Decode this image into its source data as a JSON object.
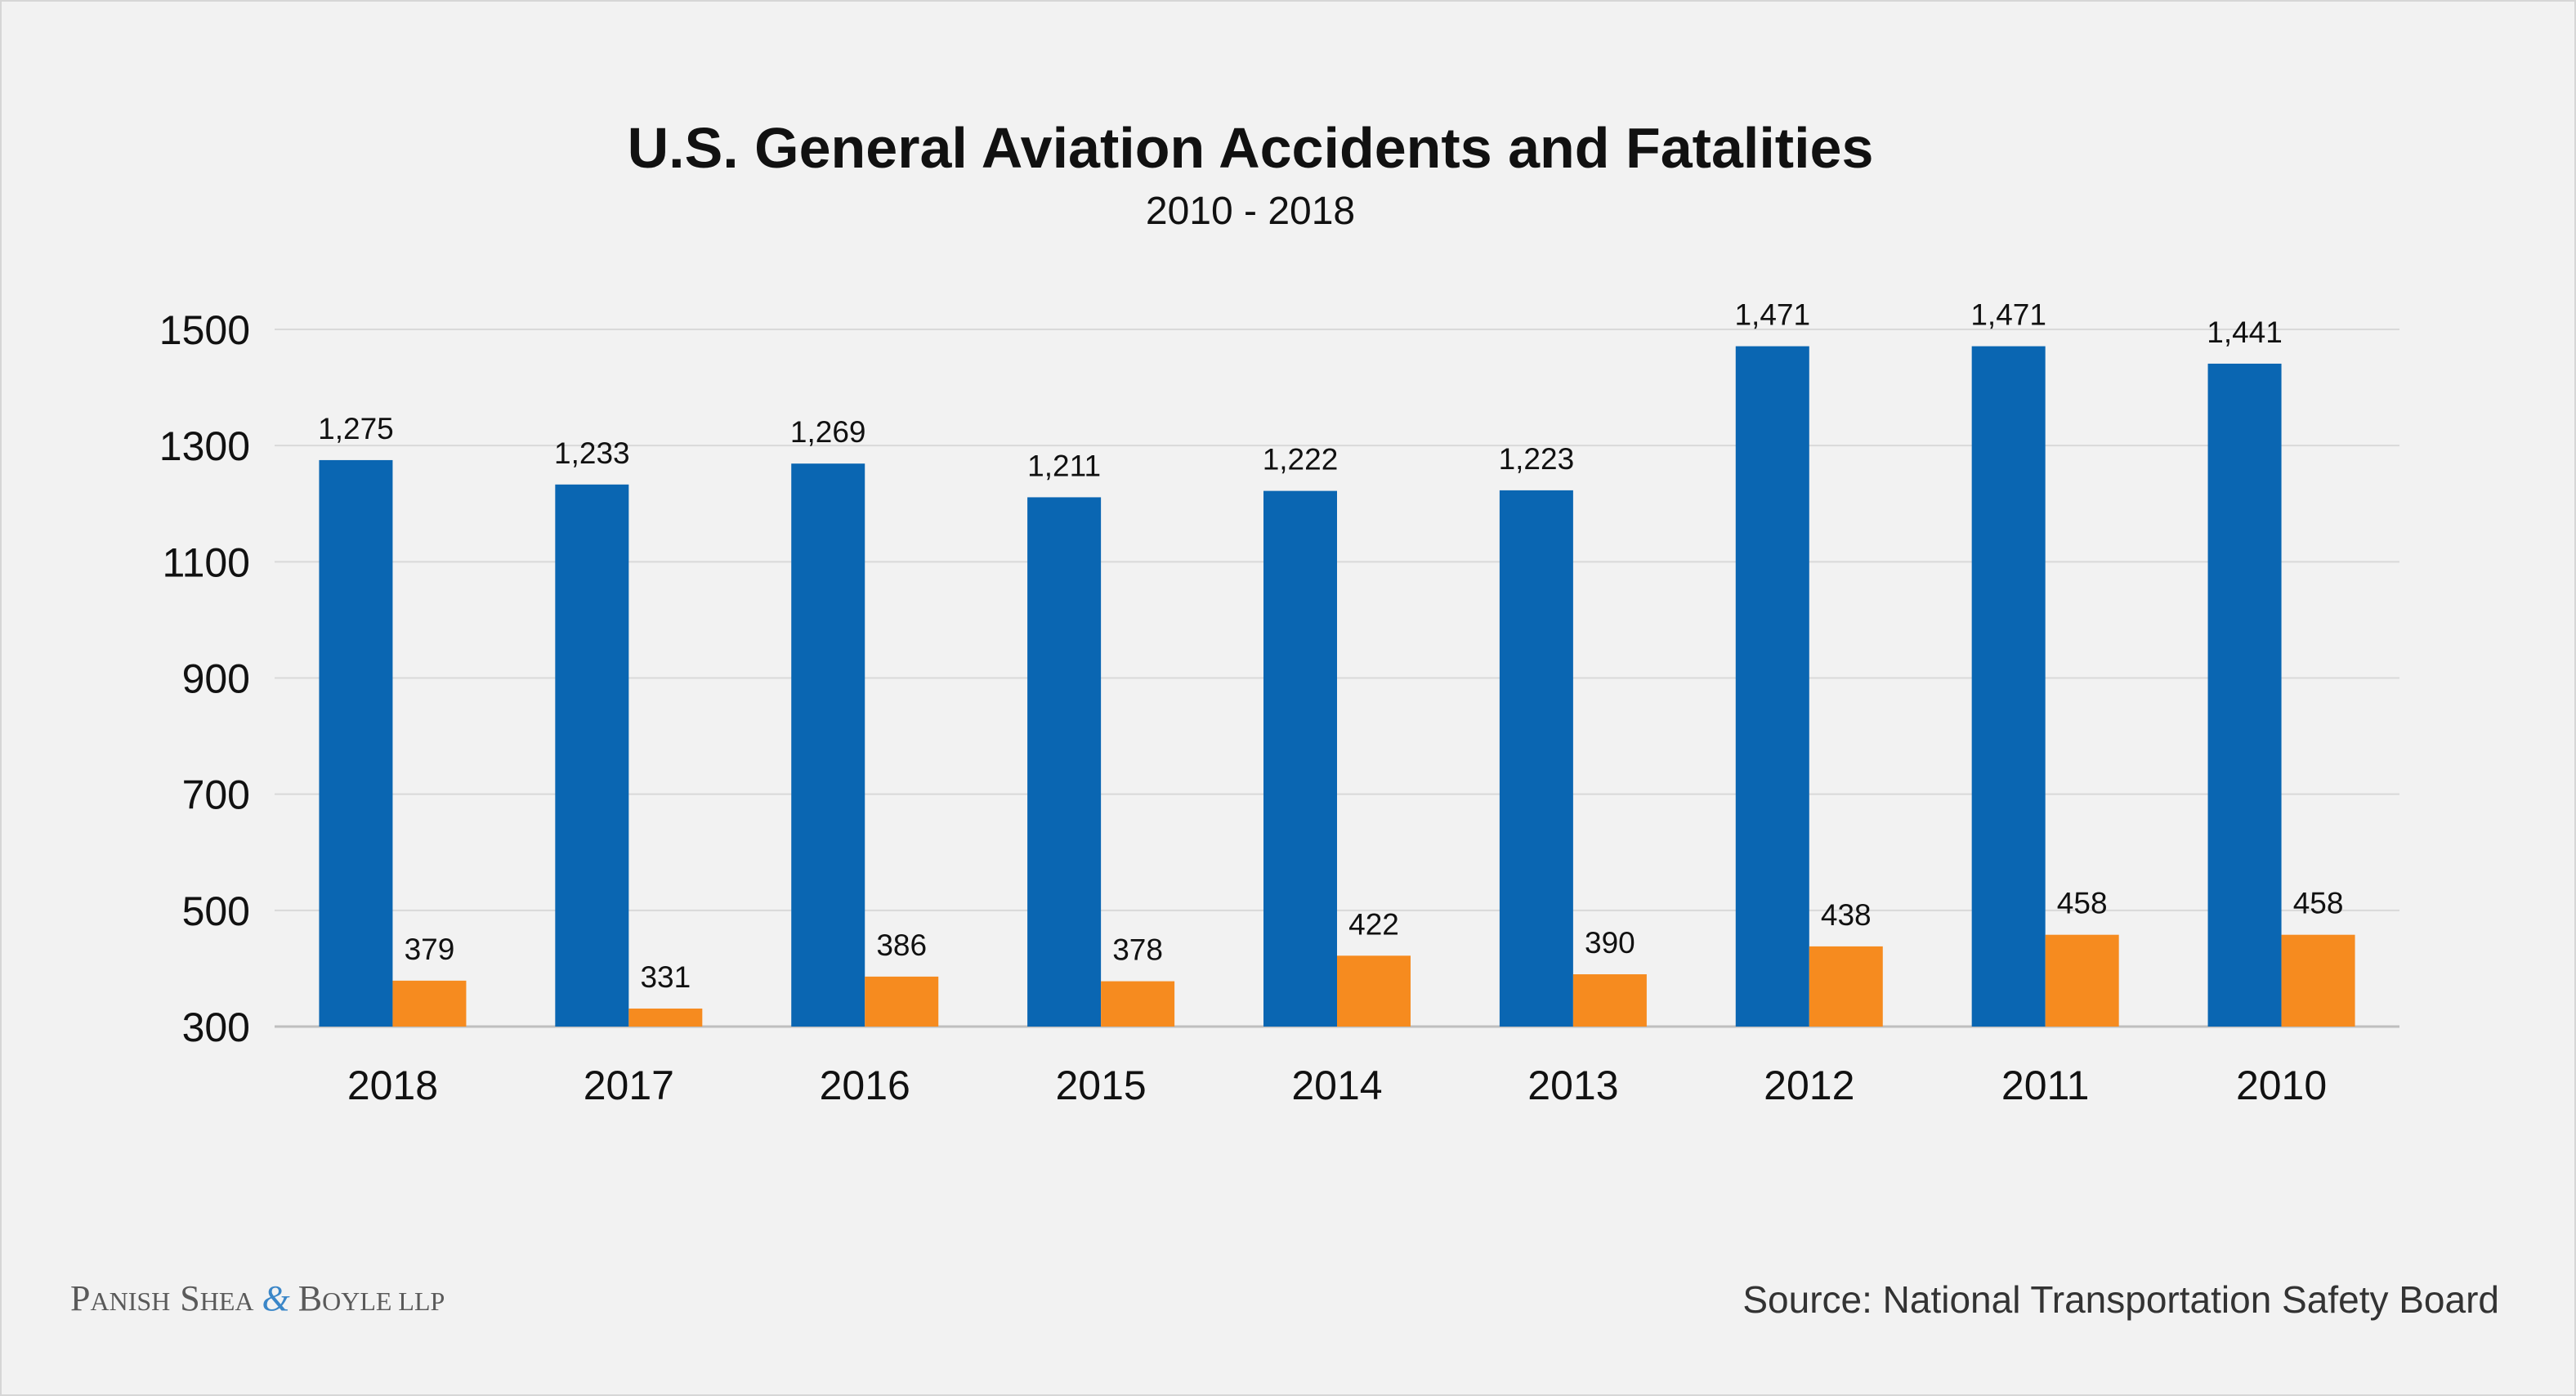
{
  "chart_data": {
    "type": "bar",
    "title": "U.S. General Aviation Accidents and Fatalities",
    "subtitle": "2010 - 2018",
    "categories": [
      "2018",
      "2017",
      "2016",
      "2015",
      "2014",
      "2013",
      "2012",
      "2011",
      "2010"
    ],
    "series": [
      {
        "color": "#0a66b2",
        "values": [
          1275,
          1233,
          1269,
          1211,
          1222,
          1223,
          1471,
          1471,
          1441
        ],
        "labels": [
          "1,275",
          "1,233",
          "1,269",
          "1,211",
          "1,222",
          "1,223",
          "1,471",
          "1,471",
          "1,441"
        ]
      },
      {
        "color": "#f68b1f",
        "values": [
          379,
          331,
          386,
          378,
          422,
          390,
          438,
          458,
          458
        ],
        "labels": [
          "379",
          "331",
          "386",
          "378",
          "422",
          "390",
          "438",
          "458",
          "458"
        ]
      }
    ],
    "ylim": [
      300,
      1500
    ],
    "yticks": [
      1500,
      1300,
      1100,
      900,
      700,
      500,
      300
    ],
    "ytick_labels": [
      "1500",
      "1300",
      "1100",
      "900",
      "700",
      "500",
      "300"
    ],
    "grid": true,
    "legend": "none"
  },
  "footer": {
    "source": "Source: National Transportation Safety Board",
    "brand": {
      "p_initial": "P",
      "p_rest": "ANISH",
      "s_initial": "S",
      "s_rest": "HEA",
      "amp": "&",
      "b_initial": "B",
      "b_rest": "OYLE LLP"
    }
  },
  "colors": {
    "background": "#f2f2f2",
    "gridline": "#d9d9d9",
    "axis": "#bfbfbf"
  }
}
